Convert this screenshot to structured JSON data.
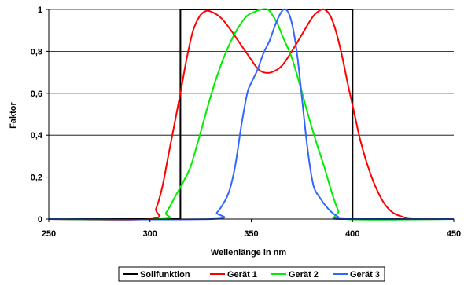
{
  "chart_data": {
    "type": "line",
    "title": "",
    "xlabel": "Wellenlänge in nm",
    "ylabel": "Faktor",
    "xlim": [
      250,
      450
    ],
    "ylim": [
      0,
      1
    ],
    "x_ticks": [
      250,
      300,
      350,
      400,
      450
    ],
    "y_ticks": [
      0,
      0.2,
      0.4,
      0.6,
      0.8,
      1
    ],
    "x_tick_labels": [
      "250",
      "300",
      "350",
      "400",
      "450"
    ],
    "y_tick_labels": [
      "0",
      "0,2",
      "0,4",
      "0,6",
      "0,8",
      "1"
    ],
    "grid": "horizontal",
    "legend_position": "bottom",
    "series": [
      {
        "name": "Sollfunktion",
        "color": "#000000",
        "x": [
          250,
          315,
          315,
          400,
          400,
          450
        ],
        "y": [
          0,
          0,
          1,
          1,
          0,
          0
        ]
      },
      {
        "name": "Gerät 1",
        "color": "#ff0000",
        "x": [
          250,
          300,
          303,
          306,
          309,
          312,
          315,
          318,
          321,
          324,
          327,
          330,
          335,
          340,
          345,
          350,
          353,
          356,
          360,
          365,
          370,
          375,
          380,
          383,
          386,
          389,
          392,
          395,
          398,
          401,
          404,
          408,
          412,
          416,
          420,
          425,
          430,
          450
        ],
        "y": [
          0,
          0,
          0.05,
          0.15,
          0.3,
          0.45,
          0.6,
          0.76,
          0.89,
          0.96,
          0.99,
          0.99,
          0.96,
          0.9,
          0.83,
          0.76,
          0.72,
          0.7,
          0.7,
          0.73,
          0.8,
          0.88,
          0.96,
          0.99,
          1.0,
          0.97,
          0.89,
          0.77,
          0.63,
          0.5,
          0.37,
          0.24,
          0.14,
          0.07,
          0.03,
          0.01,
          0,
          0
        ]
      },
      {
        "name": "Gerät 2",
        "color": "#00ee00",
        "x": [
          250,
          305,
          308,
          312,
          316,
          320,
          324,
          328,
          332,
          336,
          340,
          344,
          348,
          352,
          355,
          358,
          360,
          363,
          366,
          370,
          374,
          378,
          382,
          386,
          390,
          393,
          396,
          450
        ],
        "y": [
          0,
          0,
          0.03,
          0.1,
          0.17,
          0.25,
          0.38,
          0.52,
          0.65,
          0.76,
          0.85,
          0.92,
          0.97,
          0.99,
          1.0,
          1.0,
          0.98,
          0.93,
          0.86,
          0.77,
          0.64,
          0.5,
          0.37,
          0.25,
          0.12,
          0.04,
          0.0,
          0
        ]
      },
      {
        "name": "Gerät 3",
        "color": "#3366ff",
        "x": [
          250,
          330,
          333,
          336,
          339,
          342,
          345,
          348,
          350,
          353,
          356,
          359,
          362,
          365,
          367,
          369,
          371,
          373,
          375,
          377,
          379,
          381,
          384,
          387,
          390,
          393,
          395,
          450
        ],
        "y": [
          0,
          0,
          0.03,
          0.07,
          0.13,
          0.25,
          0.44,
          0.6,
          0.65,
          0.71,
          0.79,
          0.85,
          0.93,
          0.99,
          1.0,
          0.97,
          0.89,
          0.76,
          0.58,
          0.4,
          0.25,
          0.15,
          0.1,
          0.06,
          0.03,
          0.01,
          0.0,
          0
        ]
      }
    ]
  }
}
